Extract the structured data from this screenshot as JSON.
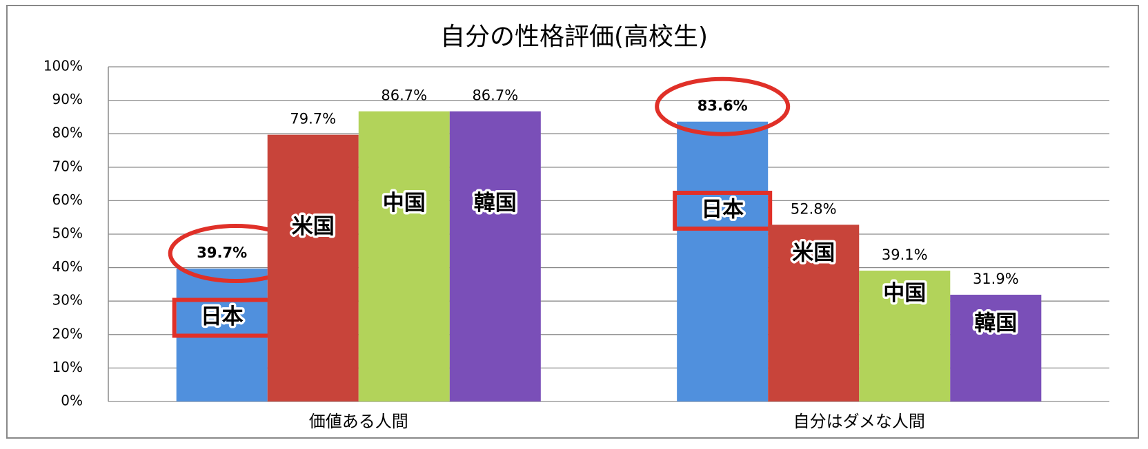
{
  "chart_data": {
    "type": "bar",
    "title": "自分の性格評価(高校生)",
    "categories": [
      "価値ある人間",
      "自分はダメな人間"
    ],
    "series": [
      {
        "name": "日本",
        "color": "#5090dd",
        "values": [
          39.7,
          83.6
        ],
        "value_labels": [
          "39.7%",
          "83.6%"
        ]
      },
      {
        "name": "米国",
        "color": "#c8443a",
        "values": [
          79.7,
          52.8
        ],
        "value_labels": [
          "79.7%",
          "52.8%"
        ]
      },
      {
        "name": "中国",
        "color": "#b2d35a",
        "values": [
          86.7,
          39.1
        ],
        "value_labels": [
          "86.7%",
          "39.1%"
        ]
      },
      {
        "name": "韓国",
        "color": "#7a4fb8",
        "values": [
          86.7,
          31.9
        ],
        "value_labels": [
          "86.7%",
          "31.9%"
        ]
      }
    ],
    "ylim": [
      0,
      100
    ],
    "yticks": [
      {
        "value": 0,
        "label": "0%"
      },
      {
        "value": 10,
        "label": "10%"
      },
      {
        "value": 20,
        "label": "20%"
      },
      {
        "value": 30,
        "label": "30%"
      },
      {
        "value": 40,
        "label": "40%"
      },
      {
        "value": 50,
        "label": "50%"
      },
      {
        "value": 60,
        "label": "60%"
      },
      {
        "value": 70,
        "label": "70%"
      },
      {
        "value": 80,
        "label": "80%"
      },
      {
        "value": 90,
        "label": "90%"
      },
      {
        "value": 100,
        "label": "100%"
      }
    ],
    "grid": true
  }
}
